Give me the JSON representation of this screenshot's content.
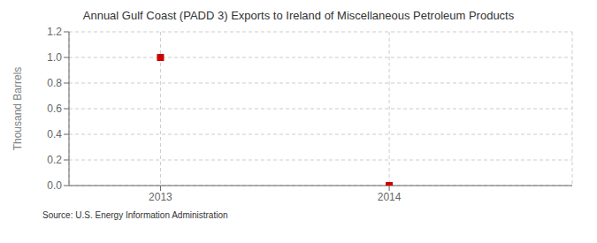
{
  "chart_data": {
    "type": "scatter",
    "title": "Annual Gulf Coast (PADD 3) Exports to Ireland of Miscellaneous Petroleum Products",
    "ylabel": "Thousand Barrels",
    "annotations": [
      "Source: U.S. Energy Information Administration"
    ],
    "x": [
      2013,
      2014
    ],
    "values": [
      1.0,
      0.0
    ],
    "color": "#cc0000",
    "marker": "square",
    "xlim": [
      2012.6,
      2014.8
    ],
    "xticks": [
      2013,
      2014
    ],
    "ylim": [
      0.0,
      1.2
    ],
    "yticks": [
      {
        "value": 0.0,
        "label": "0.0"
      },
      0.2,
      0.4,
      0.6,
      0.8,
      {
        "value": 1.0,
        "label": "1.0"
      },
      1.2
    ],
    "grid": true
  }
}
